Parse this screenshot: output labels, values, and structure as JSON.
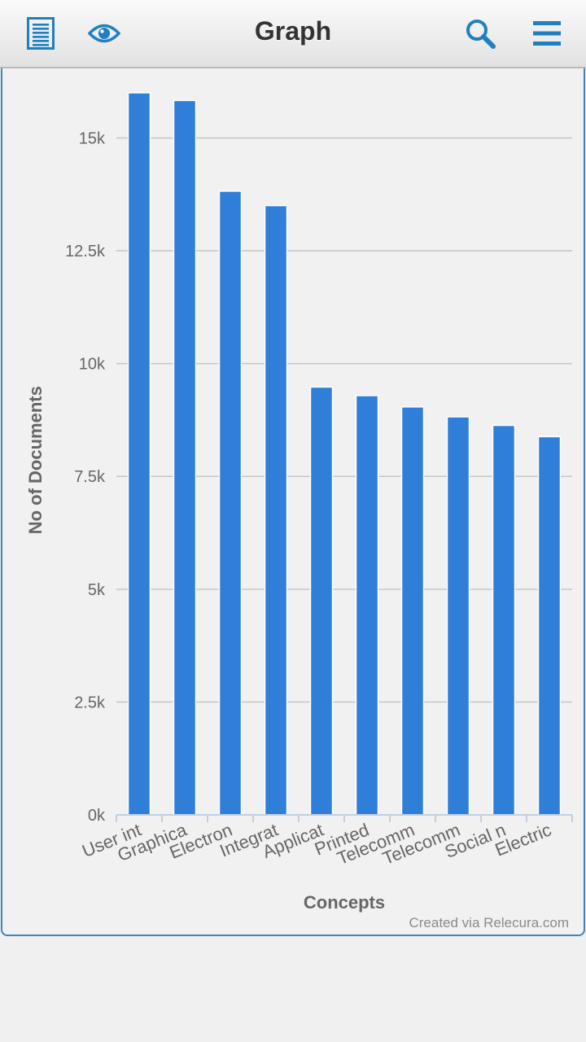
{
  "header": {
    "title": "Graph",
    "icons": [
      "list-icon",
      "eye-icon",
      "search-icon",
      "menu-icon"
    ],
    "accent": "#1f7fc0"
  },
  "footer": {
    "credit": "Created via Relecura.com"
  },
  "chart_data": {
    "type": "bar",
    "title": "",
    "xlabel": "Concepts",
    "ylabel": "No of Documents",
    "categories": [
      "User int",
      "Graphica",
      "Electron",
      "Integrat",
      "Applicat",
      "Printed",
      "Telecomm",
      "Telecomm",
      "Social n",
      "Electric"
    ],
    "values": [
      16000,
      15830,
      13820,
      13500,
      9480,
      9290,
      9040,
      8820,
      8630,
      8380
    ],
    "yticks": [
      0,
      2500,
      5000,
      7500,
      10000,
      12500,
      15000
    ],
    "ytick_labels": [
      "0k",
      "2.5k",
      "5k",
      "7.5k",
      "10k",
      "12.5k",
      "15k"
    ],
    "ylim": [
      0,
      16000
    ],
    "grid": true,
    "legend": "none",
    "bar_color": "#2f7ed8"
  }
}
